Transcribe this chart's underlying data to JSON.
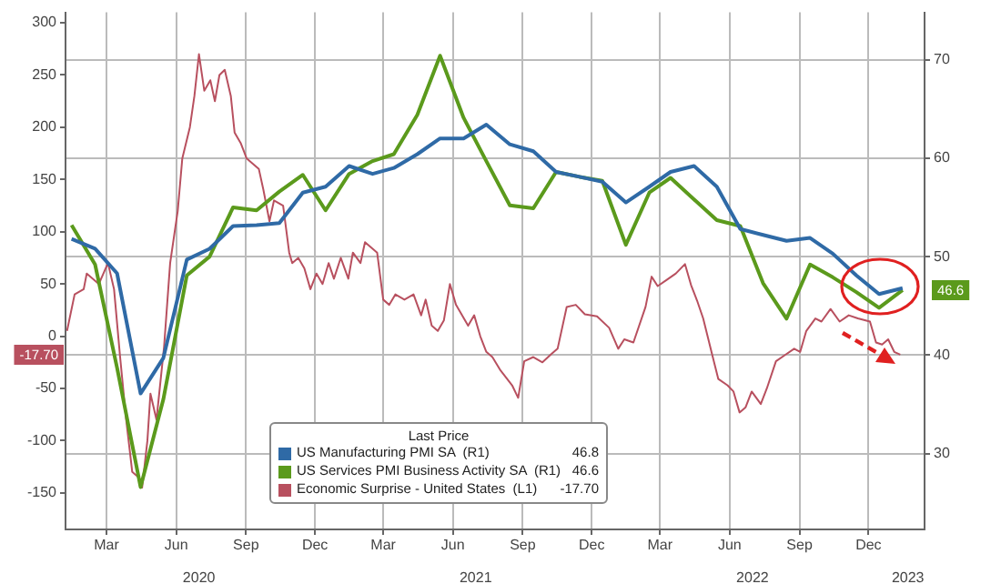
{
  "chart_data": {
    "type": "line",
    "legend": "bottom",
    "legend_title": "Last Price",
    "grid": true,
    "marker": "none",
    "line_style": "solid",
    "xlim": [
      "2020-01-07",
      "2023-02-13"
    ],
    "xticks": [
      {
        "value": "2020-03-01",
        "label": "Mar"
      },
      {
        "value": "2020-06-01",
        "label": "Jun"
      },
      {
        "value": "2020-09-01",
        "label": "Sep"
      },
      {
        "value": "2020-12-01",
        "label": "Dec"
      },
      {
        "value": "2021-03-01",
        "label": "Mar"
      },
      {
        "value": "2021-06-01",
        "label": "Jun"
      },
      {
        "value": "2021-09-01",
        "label": "Sep"
      },
      {
        "value": "2021-12-01",
        "label": "Dec"
      },
      {
        "value": "2022-03-01",
        "label": "Mar"
      },
      {
        "value": "2022-06-01",
        "label": "Jun"
      },
      {
        "value": "2022-09-01",
        "label": "Sep"
      },
      {
        "value": "2022-12-01",
        "label": "Dec"
      }
    ],
    "x2lim": [
      "2020-01-07",
      "2023-02-13"
    ],
    "x2ticks": [
      {
        "value": "2020-07-01",
        "label": "2020"
      },
      {
        "value": "2021-07-01",
        "label": "2021"
      },
      {
        "value": "2022-07-01",
        "label": "2022"
      },
      {
        "value": "2023-01-22",
        "label": "2023"
      }
    ],
    "ylim": [
      -185,
      310
    ],
    "yticks": [
      -150,
      -100,
      -50,
      0,
      50,
      100,
      150,
      200,
      250,
      300
    ],
    "y2lim": [
      22.3,
      74.8
    ],
    "y2ticks": [
      30,
      40,
      50,
      60,
      70
    ],
    "annotations": [
      "46.8",
      "46.6",
      "-17.70",
      "46.6",
      "-17.70"
    ],
    "series": [
      {
        "name": "US Manufacturing PMI SA  (R1)",
        "color": "#2f6aa6",
        "axis": "y2",
        "x": [
          "2020-01-15",
          "2020-02-15",
          "2020-03-15",
          "2020-04-15",
          "2020-05-15",
          "2020-06-15",
          "2020-07-15",
          "2020-08-15",
          "2020-09-15",
          "2020-10-15",
          "2020-11-15",
          "2020-12-15",
          "2021-01-15",
          "2021-02-15",
          "2021-03-15",
          "2021-04-15",
          "2021-05-15",
          "2021-06-15",
          "2021-07-15",
          "2021-08-15",
          "2021-09-15",
          "2021-10-15",
          "2021-11-15",
          "2021-12-15",
          "2022-01-15",
          "2022-02-15",
          "2022-03-15",
          "2022-04-15",
          "2022-05-15",
          "2022-06-15",
          "2022-07-15",
          "2022-08-15",
          "2022-09-15",
          "2022-10-15",
          "2022-11-15",
          "2022-12-15",
          "2023-01-15"
        ],
        "values": [
          51.8,
          50.8,
          48.3,
          36.1,
          39.7,
          49.7,
          50.8,
          53.1,
          53.2,
          53.4,
          56.5,
          57.1,
          59.2,
          58.4,
          59.0,
          60.4,
          62.0,
          62.0,
          63.4,
          61.4,
          60.7,
          58.6,
          58.1,
          57.6,
          55.5,
          57.1,
          58.6,
          59.2,
          57.1,
          52.8,
          52.2,
          51.6,
          51.9,
          50.3,
          48.1,
          46.2,
          46.8
        ]
      },
      {
        "name": "US Services PMI Business Activity SA  (R1)",
        "color": "#5b9a1c",
        "axis": "y2",
        "x": [
          "2020-01-15",
          "2020-02-15",
          "2020-03-15",
          "2020-04-15",
          "2020-05-15",
          "2020-06-15",
          "2020-07-15",
          "2020-08-15",
          "2020-09-15",
          "2020-10-15",
          "2020-11-15",
          "2020-12-15",
          "2021-01-15",
          "2021-02-15",
          "2021-03-15",
          "2021-04-15",
          "2021-05-15",
          "2021-06-15",
          "2021-07-15",
          "2021-08-15",
          "2021-09-15",
          "2021-10-15",
          "2021-11-15",
          "2021-12-15",
          "2022-01-15",
          "2022-02-15",
          "2022-03-15",
          "2022-04-15",
          "2022-05-15",
          "2022-06-15",
          "2022-07-15",
          "2022-08-15",
          "2022-09-15",
          "2022-10-15",
          "2022-11-15",
          "2022-12-15",
          "2023-01-15"
        ],
        "values": [
          53.2,
          49.2,
          38.7,
          26.6,
          35.5,
          48.1,
          50.0,
          55.0,
          54.7,
          56.6,
          58.3,
          54.7,
          58.4,
          59.7,
          60.4,
          64.4,
          70.4,
          64.1,
          59.7,
          55.2,
          54.9,
          58.6,
          58.1,
          57.7,
          51.2,
          56.5,
          58.0,
          55.8,
          53.7,
          53.1,
          47.3,
          43.7,
          49.2,
          47.9,
          46.4,
          44.8,
          46.6
        ]
      },
      {
        "name": "Economic Surprise - United States  (L1)",
        "color": "#b8505f",
        "axis": "y",
        "x": [
          "2020-01-09",
          "2020-01-19",
          "2020-01-31",
          "2020-02-04",
          "2020-02-20",
          "2020-03-03",
          "2020-03-11",
          "2020-03-19",
          "2020-03-27",
          "2020-04-04",
          "2020-04-12",
          "2020-04-17",
          "2020-04-24",
          "2020-04-28",
          "2020-05-06",
          "2020-05-16",
          "2020-05-24",
          "2020-06-03",
          "2020-06-09",
          "2020-06-19",
          "2020-06-25",
          "2020-07-01",
          "2020-07-08",
          "2020-07-16",
          "2020-07-22",
          "2020-07-28",
          "2020-08-04",
          "2020-08-12",
          "2020-08-17",
          "2020-08-25",
          "2020-09-02",
          "2020-09-10",
          "2020-09-18",
          "2020-09-24",
          "2020-10-02",
          "2020-10-08",
          "2020-10-20",
          "2020-10-28",
          "2020-11-01",
          "2020-11-09",
          "2020-11-17",
          "2020-11-25",
          "2020-12-03",
          "2020-12-11",
          "2020-12-19",
          "2020-12-26",
          "2021-01-04",
          "2021-01-14",
          "2021-01-20",
          "2021-01-30",
          "2021-02-05",
          "2021-02-13",
          "2021-02-21",
          "2021-03-01",
          "2021-03-09",
          "2021-03-17",
          "2021-03-29",
          "2021-04-10",
          "2021-04-20",
          "2021-04-26",
          "2021-05-04",
          "2021-05-12",
          "2021-05-20",
          "2021-05-28",
          "2021-06-05",
          "2021-06-13",
          "2021-06-21",
          "2021-06-29",
          "2021-07-07",
          "2021-07-15",
          "2021-07-23",
          "2021-08-02",
          "2021-08-18",
          "2021-08-26",
          "2021-09-03",
          "2021-09-15",
          "2021-09-27",
          "2021-10-09",
          "2021-10-17",
          "2021-10-29",
          "2021-11-10",
          "2021-11-22",
          "2021-12-08",
          "2021-12-24",
          "2022-01-05",
          "2022-01-13",
          "2022-01-25",
          "2022-02-10",
          "2022-02-18",
          "2022-02-26",
          "2022-03-10",
          "2022-03-22",
          "2022-04-03",
          "2022-04-11",
          "2022-04-19",
          "2022-04-27",
          "2022-05-09",
          "2022-05-17",
          "2022-05-29",
          "2022-06-06",
          "2022-06-14",
          "2022-06-22",
          "2022-06-30",
          "2022-07-12",
          "2022-07-20",
          "2022-08-01",
          "2022-08-13",
          "2022-08-25",
          "2022-09-02",
          "2022-09-10",
          "2022-09-22",
          "2022-09-30",
          "2022-10-12",
          "2022-10-24",
          "2022-11-05",
          "2022-11-17",
          "2022-12-03",
          "2022-12-11",
          "2022-12-19",
          "2022-12-27",
          "2023-01-04",
          "2023-01-12"
        ],
        "values": [
          5,
          40,
          45,
          60,
          50,
          70,
          45,
          -20,
          -80,
          -130,
          -135,
          -145,
          -100,
          -55,
          -80,
          -10,
          70,
          120,
          170,
          200,
          230,
          270,
          235,
          245,
          225,
          250,
          255,
          230,
          195,
          185,
          170,
          165,
          160,
          140,
          110,
          130,
          125,
          80,
          70,
          75,
          65,
          45,
          60,
          50,
          70,
          55,
          75,
          55,
          80,
          70,
          90,
          85,
          80,
          35,
          30,
          40,
          35,
          40,
          20,
          35,
          10,
          5,
          15,
          50,
          30,
          20,
          10,
          20,
          0,
          -15,
          -20,
          -32,
          -47,
          -59,
          -24,
          -20,
          -25,
          -17,
          -12,
          28,
          30,
          21,
          19,
          8,
          -12,
          -3,
          -6,
          28,
          57,
          48,
          54,
          60,
          69,
          49,
          34,
          17,
          -18,
          -41,
          -47,
          -53,
          -73,
          -68,
          -53,
          -65,
          -50,
          -24,
          -18,
          -12,
          -15,
          5,
          17,
          14,
          26,
          14,
          20,
          17,
          14,
          -6,
          -8,
          -3,
          -15,
          -17.7
        ]
      }
    ]
  }
}
